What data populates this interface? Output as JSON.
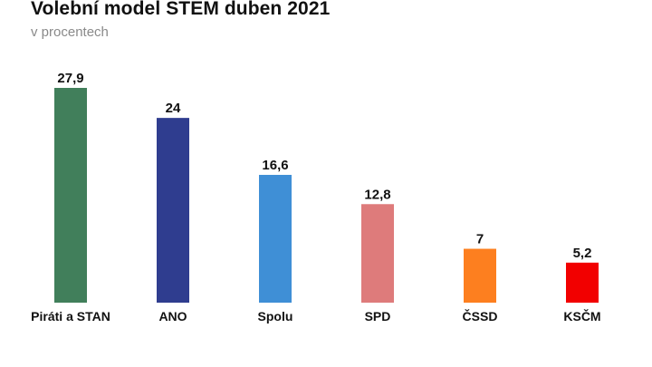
{
  "chart_data": {
    "type": "bar",
    "title": "Volební model STEM duben 2021",
    "subtitle": "v procentech",
    "xlabel": "",
    "ylabel": "",
    "ylim": [
      0,
      27.9
    ],
    "grid": false,
    "legend": "none",
    "categories": [
      "Piráti a STAN",
      "ANO",
      "Spolu",
      "SPD",
      "ČSSD",
      "KSČM"
    ],
    "values": [
      27.9,
      24,
      16.6,
      12.8,
      7,
      5.2
    ],
    "value_labels": [
      "27,9",
      "24",
      "16,6",
      "12,8",
      "7",
      "5,2"
    ],
    "colors": [
      "#417f5b",
      "#2f3d8f",
      "#3f8fd6",
      "#de7b7b",
      "#fd7f1f",
      "#f20000"
    ]
  }
}
